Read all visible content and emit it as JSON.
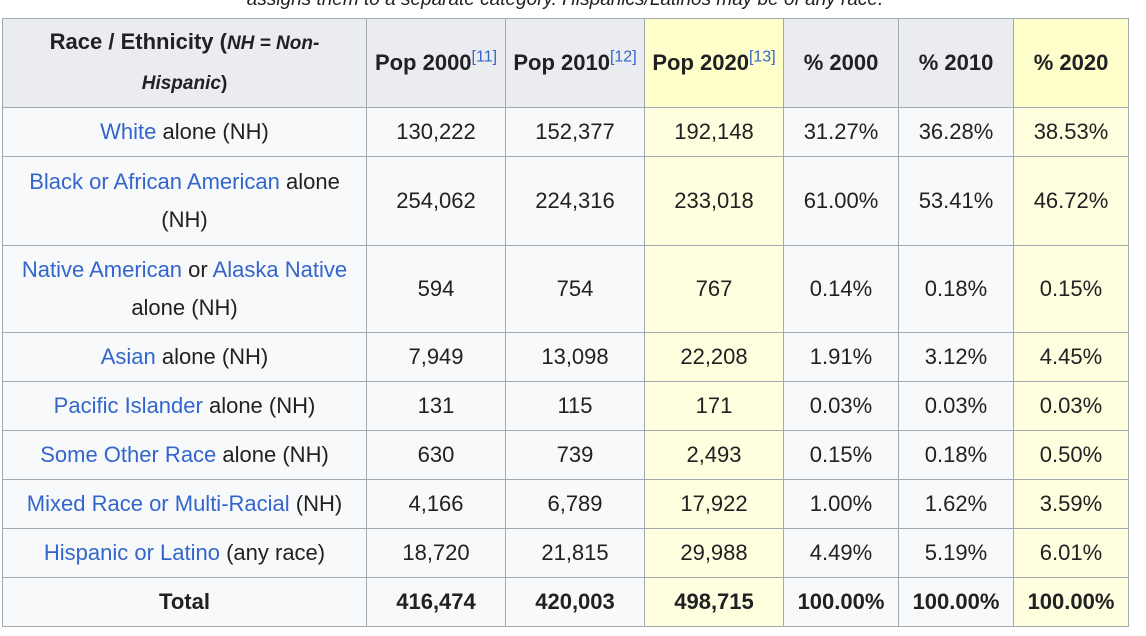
{
  "caption": "assigns them to a separate category. Hispanics/Latinos may be of any race.",
  "header": {
    "race_main": "Race / Ethnicity (",
    "race_note": "NH = Non-Hispanic",
    "race_close": ")",
    "pop2000": "Pop 2000",
    "pop2000_ref": "[11]",
    "pop2010": "Pop 2010",
    "pop2010_ref": "[12]",
    "pop2020": "Pop 2020",
    "pop2020_ref": "[13]",
    "pct2000": "% 2000",
    "pct2010": "% 2010",
    "pct2020": "% 2020"
  },
  "rows": [
    {
      "link1": "White",
      "mid": "",
      "link2": "",
      "rest": " alone (NH)",
      "pop2000": "130,222",
      "pop2010": "152,377",
      "pop2020": "192,148",
      "pct2000": "31.27%",
      "pct2010": "36.28%",
      "pct2020": "38.53%"
    },
    {
      "link1": "Black or African American",
      "mid": "",
      "link2": "",
      "rest": " alone (NH)",
      "pop2000": "254,062",
      "pop2010": "224,316",
      "pop2020": "233,018",
      "pct2000": "61.00%",
      "pct2010": "53.41%",
      "pct2020": "46.72%"
    },
    {
      "link1": "Native American",
      "mid": " or ",
      "link2": "Alaska Native",
      "rest": " alone (NH)",
      "pop2000": "594",
      "pop2010": "754",
      "pop2020": "767",
      "pct2000": "0.14%",
      "pct2010": "0.18%",
      "pct2020": "0.15%"
    },
    {
      "link1": "Asian",
      "mid": "",
      "link2": "",
      "rest": " alone (NH)",
      "pop2000": "7,949",
      "pop2010": "13,098",
      "pop2020": "22,208",
      "pct2000": "1.91%",
      "pct2010": "3.12%",
      "pct2020": "4.45%"
    },
    {
      "link1": "Pacific Islander",
      "mid": "",
      "link2": "",
      "rest": " alone (NH)",
      "pop2000": "131",
      "pop2010": "115",
      "pop2020": "171",
      "pct2000": "0.03%",
      "pct2010": "0.03%",
      "pct2020": "0.03%"
    },
    {
      "link1": "Some Other Race",
      "mid": "",
      "link2": "",
      "rest": " alone (NH)",
      "pop2000": "630",
      "pop2010": "739",
      "pop2020": "2,493",
      "pct2000": "0.15%",
      "pct2010": "0.18%",
      "pct2020": "0.50%"
    },
    {
      "link1": "Mixed Race or Multi-Racial",
      "mid": "",
      "link2": "",
      "rest": " (NH)",
      "pop2000": "4,166",
      "pop2010": "6,789",
      "pop2020": "17,922",
      "pct2000": "1.00%",
      "pct2010": "1.62%",
      "pct2020": "3.59%"
    },
    {
      "link1": "Hispanic or Latino",
      "mid": "",
      "link2": "",
      "rest": " (any race)",
      "pop2000": "18,720",
      "pop2010": "21,815",
      "pop2020": "29,988",
      "pct2000": "4.49%",
      "pct2010": "5.19%",
      "pct2020": "6.01%"
    }
  ],
  "total": {
    "label": "Total",
    "pop2000": "416,474",
    "pop2010": "420,003",
    "pop2020": "498,715",
    "pct2000": "100.00%",
    "pct2010": "100.00%",
    "pct2020": "100.00%"
  },
  "colors": {
    "link": "#3366cc",
    "highlight_header": "#ffffcc",
    "highlight_cell": "#ffffe0",
    "header_bg": "#eaecf0",
    "border": "#a2a9b1"
  }
}
